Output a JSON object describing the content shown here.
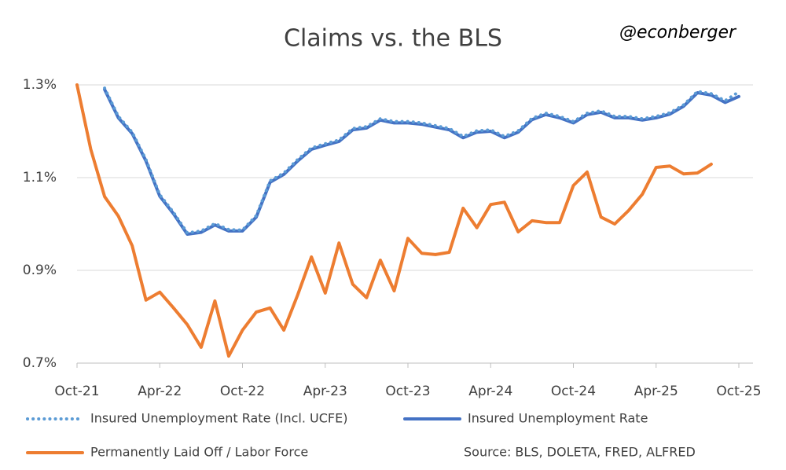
{
  "chart_data": {
    "type": "line",
    "title": "Claims vs. the BLS",
    "annotation": "@econberger",
    "source": "Source: BLS, DOLETA, FRED, ALFRED",
    "categories": [
      "Oct-21",
      null,
      null,
      null,
      null,
      null,
      "Apr-22",
      null,
      null,
      null,
      null,
      null,
      "Oct-22",
      null,
      null,
      null,
      null,
      null,
      "Apr-23",
      null,
      null,
      null,
      null,
      null,
      "Oct-23",
      null,
      null,
      null,
      null,
      null,
      "Apr-24",
      null,
      null,
      null,
      null,
      null,
      "Oct-24",
      null,
      null,
      null,
      null,
      null,
      "Apr-25",
      null,
      null,
      null,
      null,
      null,
      "Oct-25"
    ],
    "series": [
      {
        "name": "Insured Unemployment Rate (Incl. UCFE)",
        "color": "#5b9bd5",
        "dash": "dotted",
        "values": [
          null,
          null,
          1.293,
          1.232,
          1.198,
          1.139,
          1.063,
          1.025,
          0.981,
          0.985,
          1.001,
          0.988,
          0.987,
          1.018,
          1.093,
          1.11,
          1.139,
          1.164,
          1.173,
          1.181,
          1.206,
          1.21,
          1.227,
          1.221,
          1.221,
          1.218,
          1.212,
          1.206,
          1.189,
          1.201,
          1.203,
          1.189,
          1.201,
          1.228,
          1.239,
          1.232,
          1.221,
          1.239,
          1.244,
          1.232,
          1.232,
          1.227,
          1.232,
          1.24,
          1.257,
          1.286,
          1.281,
          1.266,
          1.285
        ]
      },
      {
        "name": "Insured Unemployment Rate",
        "color": "#4472c4",
        "dash": "solid",
        "values": [
          null,
          null,
          1.29,
          1.229,
          1.195,
          1.136,
          1.06,
          1.022,
          0.978,
          0.982,
          0.998,
          0.985,
          0.985,
          1.015,
          1.09,
          1.107,
          1.136,
          1.161,
          1.17,
          1.178,
          1.203,
          1.207,
          1.224,
          1.218,
          1.218,
          1.215,
          1.209,
          1.203,
          1.186,
          1.198,
          1.2,
          1.186,
          1.198,
          1.225,
          1.236,
          1.229,
          1.218,
          1.236,
          1.241,
          1.229,
          1.229,
          1.224,
          1.229,
          1.237,
          1.254,
          1.283,
          1.278,
          1.262,
          1.275
        ]
      },
      {
        "name": "Permanently Laid Off / Labor Force",
        "color": "#ed7d31",
        "dash": "solid",
        "values": [
          1.3,
          1.161,
          1.059,
          1.017,
          0.953,
          0.836,
          0.853,
          0.819,
          0.783,
          0.734,
          0.834,
          0.715,
          0.771,
          0.81,
          0.819,
          0.771,
          0.847,
          0.929,
          0.851,
          0.959,
          0.87,
          0.841,
          0.922,
          0.856,
          0.969,
          0.937,
          0.934,
          0.939,
          1.034,
          0.992,
          1.042,
          1.047,
          0.983,
          1.007,
          1.003,
          1.003,
          1.083,
          1.112,
          1.015,
          1.0,
          1.029,
          1.064,
          1.122,
          1.125,
          1.108,
          1.11,
          1.129,
          null,
          null
        ]
      }
    ],
    "ylim": [
      0.7,
      1.3
    ],
    "yticks": [
      {
        "value": 0.7,
        "label": "0.7%"
      },
      {
        "value": 0.9,
        "label": "0.9%"
      },
      {
        "value": 1.1,
        "label": "1.1%"
      },
      {
        "value": 1.3,
        "label": "1.3%"
      }
    ],
    "grid": true
  }
}
